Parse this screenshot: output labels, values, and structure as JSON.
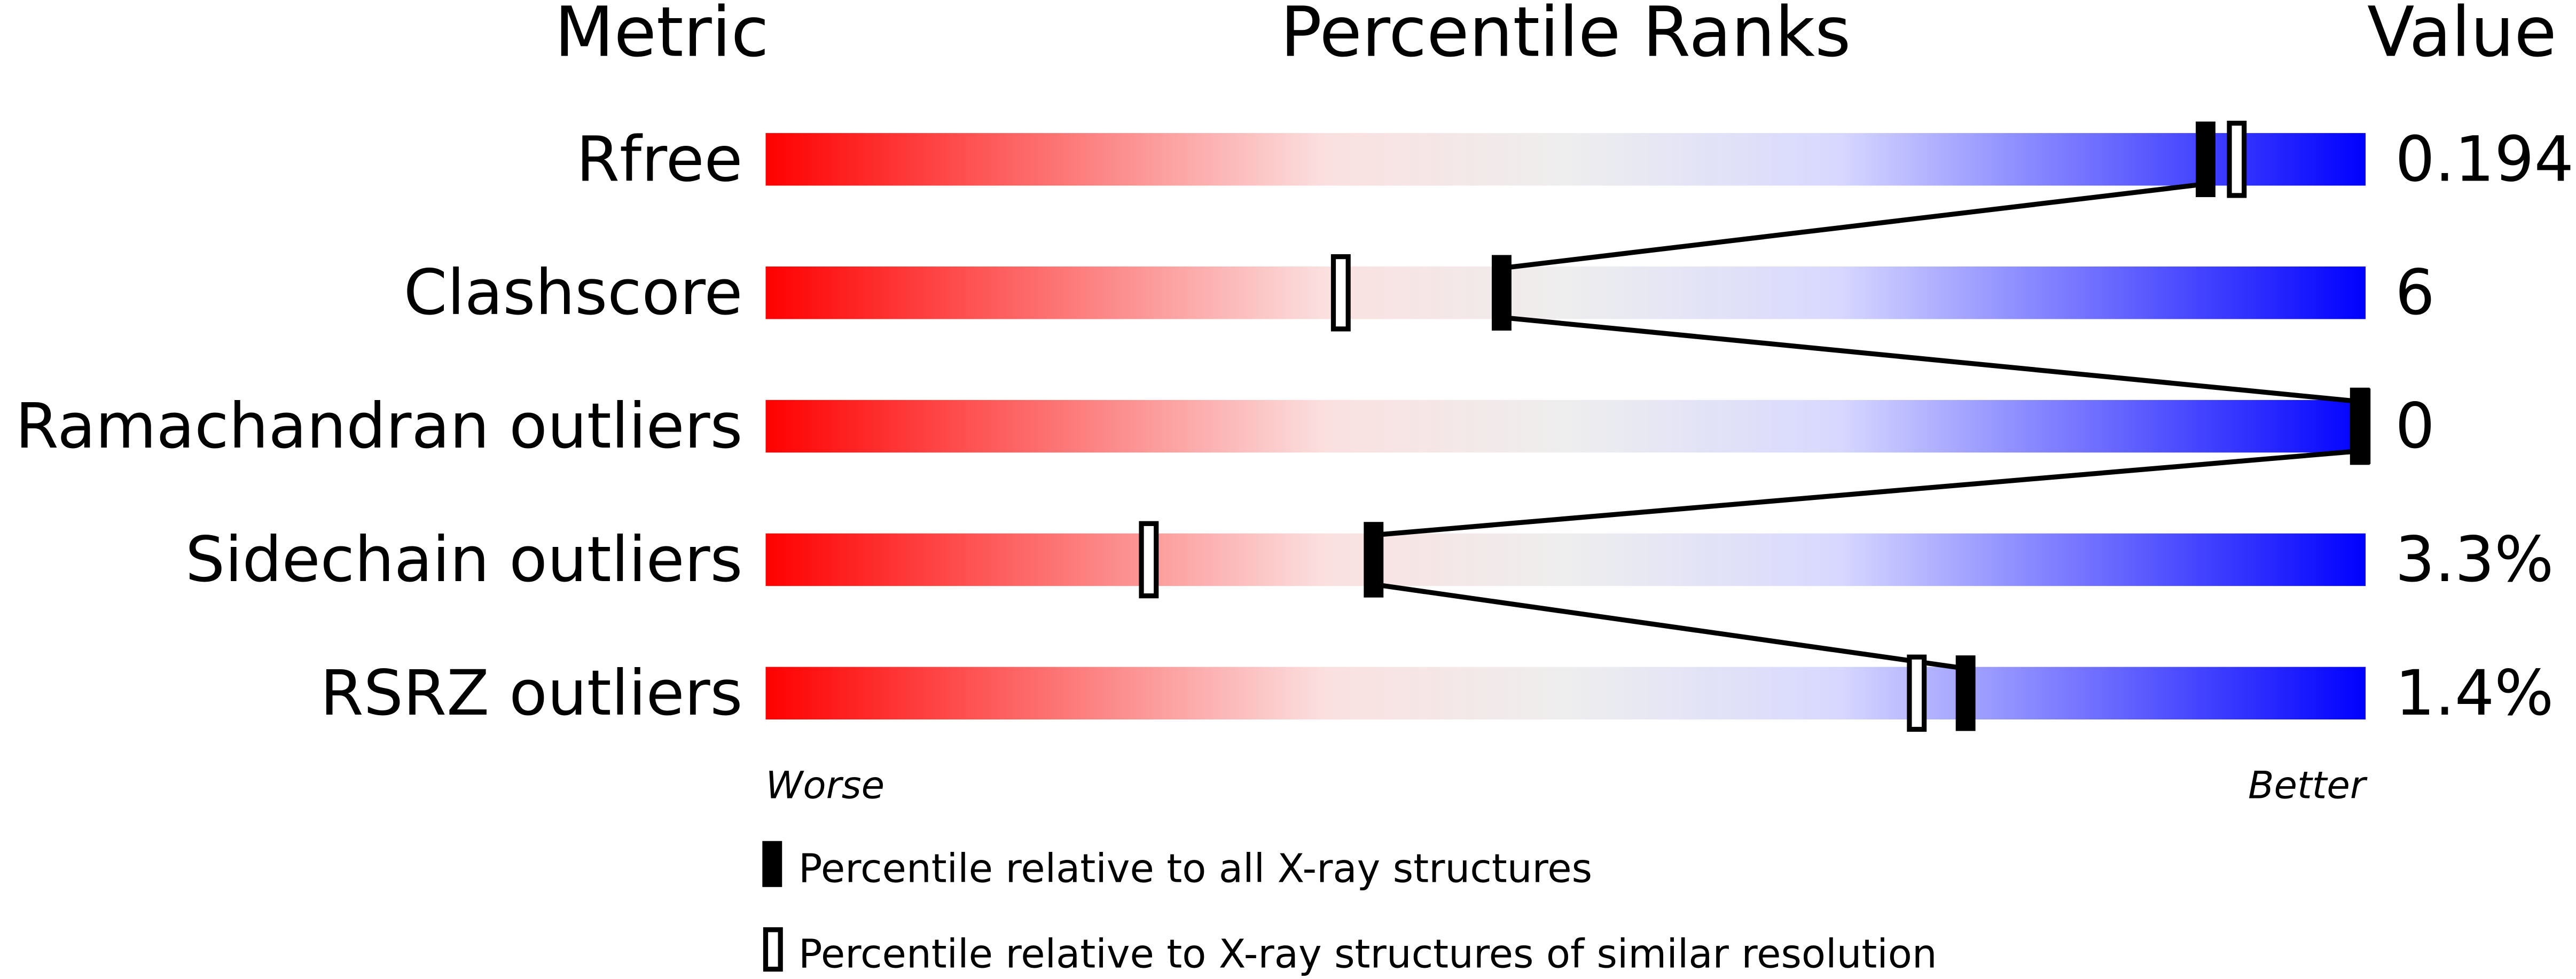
{
  "chart_data": {
    "type": "percentile-bars",
    "headers": {
      "metric": "Metric",
      "ranks": "Percentile Ranks",
      "value": "Value"
    },
    "axis": {
      "left": "Worse",
      "right": "Better",
      "range": [
        0,
        100
      ]
    },
    "gradient_colors": [
      "#ff0000",
      "#eeeeee",
      "#0000ff"
    ],
    "rows": [
      {
        "metric": "Rfree",
        "value": "0.194",
        "percentile_all": 90,
        "percentile_similar": 92
      },
      {
        "metric": "Clashscore",
        "value": "6",
        "percentile_all": 46,
        "percentile_similar": 36
      },
      {
        "metric": "Ramachandran outliers",
        "value": "0",
        "percentile_all": 100,
        "percentile_similar": 100
      },
      {
        "metric": "Sidechain outliers",
        "value": "3.3%",
        "percentile_all": 38,
        "percentile_similar": 24
      },
      {
        "metric": "RSRZ outliers",
        "value": "1.4%",
        "percentile_all": 75,
        "percentile_similar": 72
      }
    ],
    "legend": [
      {
        "marker": "filled",
        "label": "Percentile relative to all X-ray structures"
      },
      {
        "marker": "open",
        "label": "Percentile relative to X-ray structures of similar resolution"
      }
    ]
  }
}
